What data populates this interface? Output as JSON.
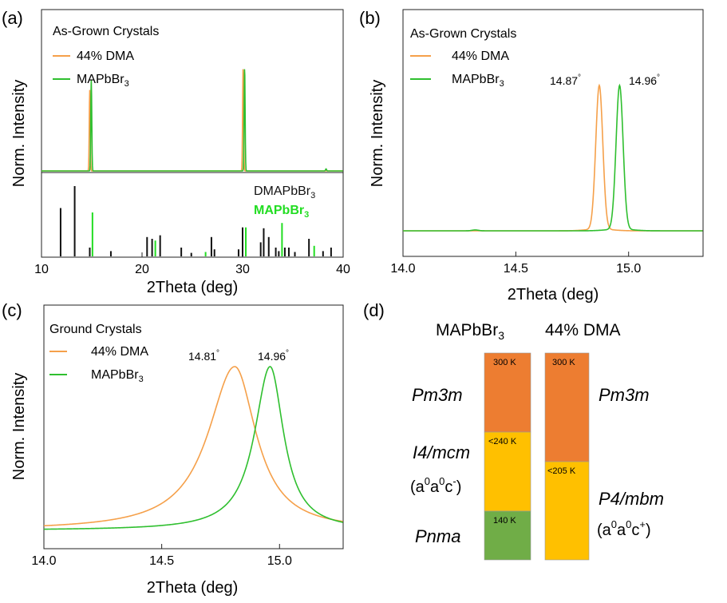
{
  "colors": {
    "dma": "#f5a04a",
    "mapbbr3": "#2fbf2f",
    "ref_dma": "#111111",
    "ref_ma": "#22dd22",
    "phase_orange": "#ed7d31",
    "phase_yellow": "#ffc000",
    "phase_green": "#70ad47"
  },
  "panels": {
    "a": {
      "letter": "(a)",
      "legend_title": "As-Grown Crystals",
      "legend": [
        "44% DMA",
        "MAPbBr"
      ],
      "legend_sub": "3",
      "ref_label_1": "DMAPbBr",
      "ref_label_2": "MAPbBr",
      "ref_sub": "3",
      "ylabel": "Norm. Intensity",
      "xlabel": "2Theta (deg)",
      "xticks": [
        "10",
        "20",
        "30",
        "40"
      ]
    },
    "b": {
      "letter": "(b)",
      "legend_title": "As-Grown Crystals",
      "legend": [
        "44% DMA",
        "MAPbBr"
      ],
      "legend_sub": "3",
      "peak_dma": "14.87",
      "peak_ma": "14.96",
      "deg": "°",
      "ylabel": "Norm. Intensity",
      "xlabel": "2Theta (deg)",
      "xticks": [
        "14.0",
        "14.5",
        "15.0"
      ]
    },
    "c": {
      "letter": "(c)",
      "legend_title": "Ground Crystals",
      "legend": [
        "44% DMA",
        "MAPbBr"
      ],
      "legend_sub": "3",
      "peak_dma": "14.81",
      "peak_ma": "14.96",
      "deg": "°",
      "ylabel": "Norm. Intensity",
      "xlabel": "2Theta (deg)",
      "xticks": [
        "14.0",
        "14.5",
        "15.0"
      ]
    },
    "d": {
      "letter": "(d)",
      "col1_head": "MAPbBr",
      "col1_sub": "3",
      "col2_head": "44% DMA",
      "left_phases": [
        "Pm3m",
        "I4/mcm",
        "Pnma"
      ],
      "left_tilt": "(a",
      "left_tilt_parts": [
        "0",
        "a",
        "0",
        "c",
        "-",
        ")"
      ],
      "right_phases": [
        "Pm3m",
        "P4/mbm"
      ],
      "right_tilt_parts": [
        "0",
        "a",
        "0",
        "c",
        "+",
        ")"
      ],
      "left_boxes": [
        "300 K",
        "<240 K",
        "140 K"
      ],
      "right_boxes": [
        "300 K",
        "<205 K"
      ]
    }
  },
  "chart_data": [
    {
      "type": "line",
      "title": "As-Grown Crystals",
      "xlabel": "2Theta (deg)",
      "ylabel": "Norm. Intensity",
      "xlim": [
        10,
        40
      ],
      "series": [
        {
          "name": "44% DMA",
          "peaks": [
            [
              14.8,
              0.78
            ],
            [
              30.05,
              1.0
            ]
          ]
        },
        {
          "name": "MAPbBr3",
          "peaks": [
            [
              14.95,
              0.88
            ],
            [
              30.2,
              1.0
            ],
            [
              38.3,
              0.02
            ]
          ]
        }
      ],
      "reference": {
        "DMAPbBr3": [
          [
            11.9,
            0.55
          ],
          [
            13.3,
            0.8
          ],
          [
            14.8,
            0.1
          ],
          [
            16.9,
            0.06
          ],
          [
            20.5,
            0.22
          ],
          [
            21.0,
            0.2
          ],
          [
            21.8,
            0.24
          ],
          [
            23.9,
            0.1
          ],
          [
            24.9,
            0.04
          ],
          [
            26.9,
            0.22
          ],
          [
            27.2,
            0.08
          ],
          [
            29.6,
            0.08
          ],
          [
            30.0,
            0.33
          ],
          [
            31.8,
            0.16
          ],
          [
            32.1,
            0.32
          ],
          [
            32.6,
            0.22
          ],
          [
            33.3,
            0.1
          ],
          [
            33.6,
            0.06
          ],
          [
            34.2,
            0.1
          ],
          [
            34.6,
            0.1
          ],
          [
            35.2,
            0.05
          ],
          [
            36.6,
            0.2
          ],
          [
            38.0,
            0.06
          ],
          [
            38.8,
            0.1
          ]
        ],
        "MAPbBr3": [
          [
            14.95,
            0.5
          ],
          [
            21.2,
            0.18
          ],
          [
            26.2,
            0.05
          ],
          [
            30.2,
            0.33
          ],
          [
            33.8,
            0.38
          ],
          [
            37.0,
            0.12
          ]
        ]
      }
    },
    {
      "type": "line",
      "title": "As-Grown Crystals",
      "xlabel": "2Theta (deg)",
      "ylabel": "Norm. Intensity",
      "xlim": [
        14.0,
        15.33
      ],
      "series": [
        {
          "name": "44% DMA",
          "center": 14.87,
          "width": 0.022
        },
        {
          "name": "MAPbBr3",
          "center": 14.96,
          "width": 0.022
        }
      ],
      "annotations": [
        "14.87°",
        "14.96°"
      ]
    },
    {
      "type": "line",
      "title": "Ground Crystals",
      "xlabel": "2Theta (deg)",
      "ylabel": "Norm. Intensity",
      "xlim": [
        14.0,
        15.27
      ],
      "series": [
        {
          "name": "44% DMA",
          "center": 14.81,
          "width": 0.11
        },
        {
          "name": "MAPbBr3",
          "center": 14.96,
          "width": 0.07
        }
      ],
      "annotations": [
        "14.81°",
        "14.96°"
      ]
    }
  ]
}
